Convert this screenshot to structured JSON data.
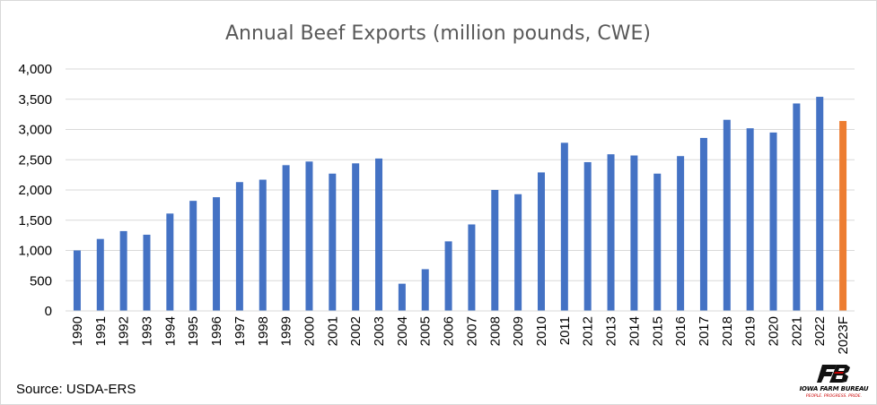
{
  "chart_data": {
    "type": "bar",
    "title": "Annual Beef Exports (million pounds, CWE)",
    "xlabel": "",
    "ylabel": "",
    "ylim": [
      0,
      4000
    ],
    "yticks": [
      "0",
      "500",
      "1,000",
      "1,500",
      "2,000",
      "2,500",
      "3,000",
      "3,500",
      "4,000"
    ],
    "grid": true,
    "categories": [
      "1990",
      "1991",
      "1992",
      "1993",
      "1994",
      "1995",
      "1996",
      "1997",
      "1998",
      "1999",
      "2000",
      "2001",
      "2002",
      "2003",
      "2004",
      "2005",
      "2006",
      "2007",
      "2008",
      "2009",
      "2010",
      "2011",
      "2012",
      "2013",
      "2014",
      "2015",
      "2016",
      "2017",
      "2018",
      "2019",
      "2020",
      "2021",
      "2022",
      "2023F"
    ],
    "values": [
      1000,
      1190,
      1320,
      1260,
      1610,
      1820,
      1880,
      2130,
      2170,
      2410,
      2470,
      2270,
      2440,
      2520,
      450,
      690,
      1150,
      1430,
      2000,
      1930,
      2290,
      2780,
      2460,
      2590,
      2570,
      2270,
      2560,
      2860,
      3160,
      3020,
      2950,
      3430,
      3540,
      3140
    ],
    "colors": {
      "actual": "#4472C4",
      "forecast": "#ED7D31",
      "grid": "#d9d9d9"
    },
    "highlighted_categories": [
      "2023F"
    ]
  },
  "source": "Source: USDA-ERS",
  "logo": {
    "monogram": "FB",
    "name": "IOWA FARM BUREAU",
    "tagline": "PEOPLE. PROGRESS. PRIDE.",
    "color": "#c00000"
  }
}
